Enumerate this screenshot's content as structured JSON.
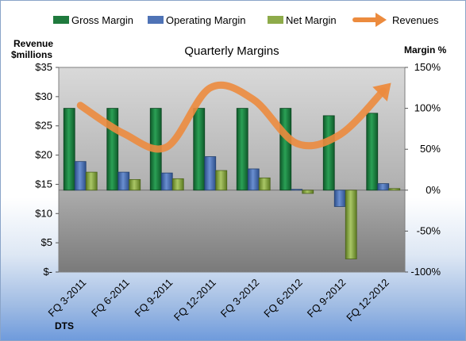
{
  "chart_data": {
    "type": "bar",
    "title": "Quarterly Margins",
    "ylabel_left": [
      "Revenue",
      "$millions"
    ],
    "ylabel_right": "Margin %",
    "footer": "DTS",
    "categories": [
      "FQ 3-2011",
      "FQ 6-2011",
      "FQ 9-2011",
      "FQ 12-2011",
      "FQ 3-2012",
      "FQ 6-2012",
      "FQ 9-2012",
      "FQ 12-2012"
    ],
    "left_axis": {
      "ticks": [
        "$-",
        "$5",
        "$10",
        "$15",
        "$20",
        "$25",
        "$30",
        "$35"
      ],
      "ylim": [
        0,
        35
      ]
    },
    "right_axis": {
      "ticks": [
        "-100%",
        "-50%",
        "0%",
        "50%",
        "100%",
        "150%"
      ],
      "ylim": [
        -100,
        150
      ]
    },
    "legend_position": "top",
    "grid": false,
    "series": [
      {
        "name": "Gross Margin",
        "axis": "right",
        "color": "#1f7a3d",
        "values": [
          100,
          100,
          100,
          100,
          100,
          100,
          91,
          94
        ]
      },
      {
        "name": "Operating Margin",
        "axis": "right",
        "color": "#4f73b6",
        "values": [
          35,
          22,
          21,
          41,
          26,
          1,
          -20,
          8
        ]
      },
      {
        "name": "Net Margin",
        "axis": "right",
        "color": "#8eab4a",
        "values": [
          22,
          13,
          14,
          24,
          15,
          -4,
          -84,
          2
        ]
      }
    ],
    "line_series": {
      "name": "Revenues",
      "axis": "left",
      "color": "#ec8b3e",
      "values": [
        28.5,
        23.7,
        21.4,
        31.5,
        29.5,
        22.0,
        23.5,
        31.0
      ]
    }
  }
}
